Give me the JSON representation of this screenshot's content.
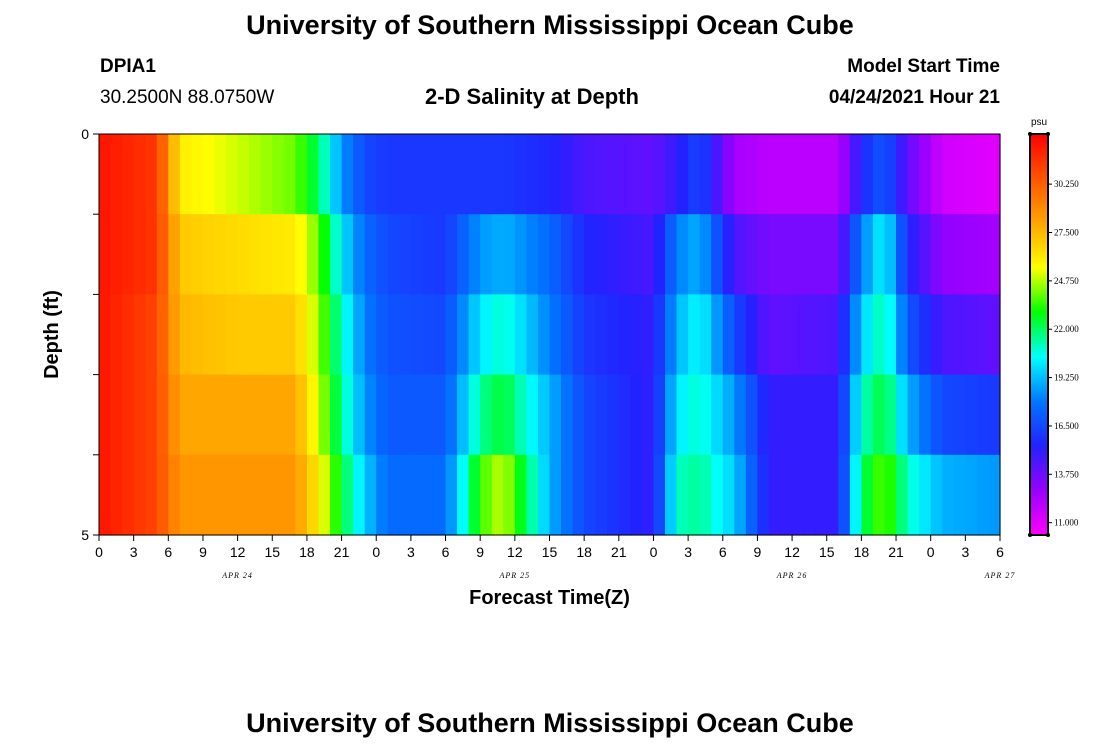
{
  "header": {
    "title_top": "University of Southern Mississippi Ocean Cube",
    "title_bottom": "University of Southern Mississippi Ocean Cube",
    "station_id": "DPIA1",
    "station_coords": "30.2500N  88.0750W",
    "model_start_label": "Model Start Time",
    "model_start_value": "04/24/2021 Hour 21"
  },
  "colors": {
    "scale": [
      "#ff00ff",
      "#9900ff",
      "#2222ff",
      "#0077ff",
      "#00ffff",
      "#00ff00",
      "#ffff00",
      "#ffa500",
      "#ff5500",
      "#ff0000"
    ]
  },
  "chart_data": {
    "type": "heatmap",
    "title": "2-D Salinity at Depth",
    "xlabel": "Forecast Time(Z)",
    "ylabel": "Depth (ft)",
    "ylim": [
      0,
      5
    ],
    "y_ticks": [
      "0",
      "5"
    ],
    "x_tick_labels": [
      "0",
      "3",
      "6",
      "9",
      "12",
      "15",
      "18",
      "21",
      "0",
      "3",
      "6",
      "9",
      "12",
      "15",
      "18",
      "21",
      "0",
      "3",
      "6",
      "9",
      "12",
      "15",
      "18",
      "21",
      "0",
      "3",
      "6"
    ],
    "date_labels": [
      {
        "text": "APR 24",
        "hour": 12
      },
      {
        "text": "APR 25",
        "hour": 36
      },
      {
        "text": "APR 26",
        "hour": 60
      },
      {
        "text": "APR 27",
        "hour": 78
      }
    ],
    "time_range_hours": [
      0,
      78
    ],
    "depth_layers": [
      "0-1 ft",
      "1-2 ft",
      "2-3 ft",
      "3-4 ft",
      "4-5 ft"
    ],
    "colorbar": {
      "unit": "psu",
      "range": [
        10.3,
        33.1
      ],
      "tick_labels": [
        "30.250",
        "27.500",
        "24.750",
        "22.000",
        "19.250",
        "16.500",
        "13.750",
        "11.000"
      ]
    },
    "salinity_keyframes": [
      {
        "hour": 0,
        "values": [
          32.5,
          32.5,
          32.5,
          32.5,
          32.5
        ]
      },
      {
        "hour": 5,
        "values": [
          31.5,
          31.5,
          31.0,
          31.0,
          31.0
        ]
      },
      {
        "hour": 7,
        "values": [
          26.0,
          27.0,
          27.5,
          28.0,
          28.5
        ]
      },
      {
        "hour": 12,
        "values": [
          25.0,
          26.5,
          27.0,
          28.0,
          28.5
        ]
      },
      {
        "hour": 17,
        "values": [
          24.0,
          26.0,
          27.0,
          28.0,
          28.5
        ]
      },
      {
        "hour": 19,
        "values": [
          22.0,
          24.0,
          24.5,
          25.0,
          26.0
        ]
      },
      {
        "hour": 21,
        "values": [
          18.5,
          20.0,
          21.0,
          21.5,
          22.5
        ]
      },
      {
        "hour": 23,
        "values": [
          16.5,
          17.5,
          18.0,
          18.5,
          19.5
        ]
      },
      {
        "hour": 25,
        "values": [
          16.0,
          16.5,
          16.8,
          17.0,
          17.5
        ]
      },
      {
        "hour": 30,
        "values": [
          16.0,
          16.0,
          16.5,
          17.0,
          17.5
        ]
      },
      {
        "hour": 33,
        "values": [
          16.0,
          18.5,
          20.0,
          21.5,
          23.5
        ]
      },
      {
        "hour": 35,
        "values": [
          16.0,
          19.0,
          21.0,
          22.5,
          25.0
        ]
      },
      {
        "hour": 39,
        "values": [
          15.5,
          17.5,
          18.0,
          19.0,
          19.0
        ]
      },
      {
        "hour": 42,
        "values": [
          14.5,
          15.5,
          16.0,
          16.5,
          16.5
        ]
      },
      {
        "hour": 48,
        "values": [
          14.0,
          14.5,
          15.0,
          15.0,
          15.0
        ]
      },
      {
        "hour": 50,
        "values": [
          15.0,
          18.0,
          19.0,
          20.0,
          21.0
        ]
      },
      {
        "hour": 52,
        "values": [
          16.5,
          19.0,
          20.5,
          21.0,
          21.5
        ]
      },
      {
        "hour": 55,
        "values": [
          12.5,
          14.5,
          16.5,
          18.5,
          19.5
        ]
      },
      {
        "hour": 58,
        "values": [
          12.0,
          13.5,
          14.0,
          15.0,
          15.0
        ]
      },
      {
        "hour": 64,
        "values": [
          12.0,
          13.5,
          14.5,
          15.0,
          15.0
        ]
      },
      {
        "hour": 66,
        "values": [
          15.5,
          18.0,
          19.5,
          21.0,
          22.0
        ]
      },
      {
        "hour": 68,
        "values": [
          17.0,
          20.5,
          21.5,
          22.5,
          24.0
        ]
      },
      {
        "hour": 70,
        "values": [
          14.0,
          15.5,
          17.0,
          19.0,
          21.0
        ]
      },
      {
        "hour": 73,
        "values": [
          11.5,
          13.0,
          14.5,
          16.5,
          19.0
        ]
      },
      {
        "hour": 78,
        "values": [
          11.0,
          12.5,
          14.0,
          16.0,
          18.5
        ]
      }
    ]
  }
}
